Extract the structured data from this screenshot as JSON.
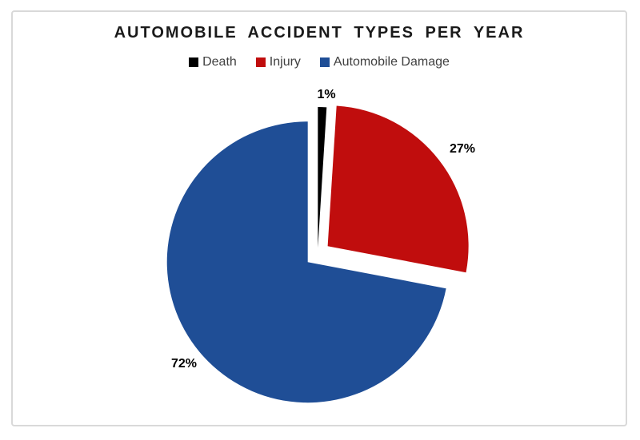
{
  "window": {
    "background": "#FFFFFF",
    "frame_border_color": "#D9D9D9"
  },
  "chart_data": {
    "type": "pie",
    "title": "AUTOMOBILE ACCIDENT TYPES PER YEAR",
    "title_color": "#1A1A1A",
    "categories": [
      "Death",
      "Injury",
      "Automobile Damage"
    ],
    "values": [
      1,
      27,
      72
    ],
    "value_labels": [
      "1%",
      "27%",
      "72%"
    ],
    "colors": [
      "#000000",
      "#C00D0D",
      "#1F4E96"
    ],
    "legend_position": "top",
    "legend_text_color": "#404040",
    "start_angle_deg": 0,
    "direction": "clockwise",
    "exploded": true,
    "grid": false
  }
}
